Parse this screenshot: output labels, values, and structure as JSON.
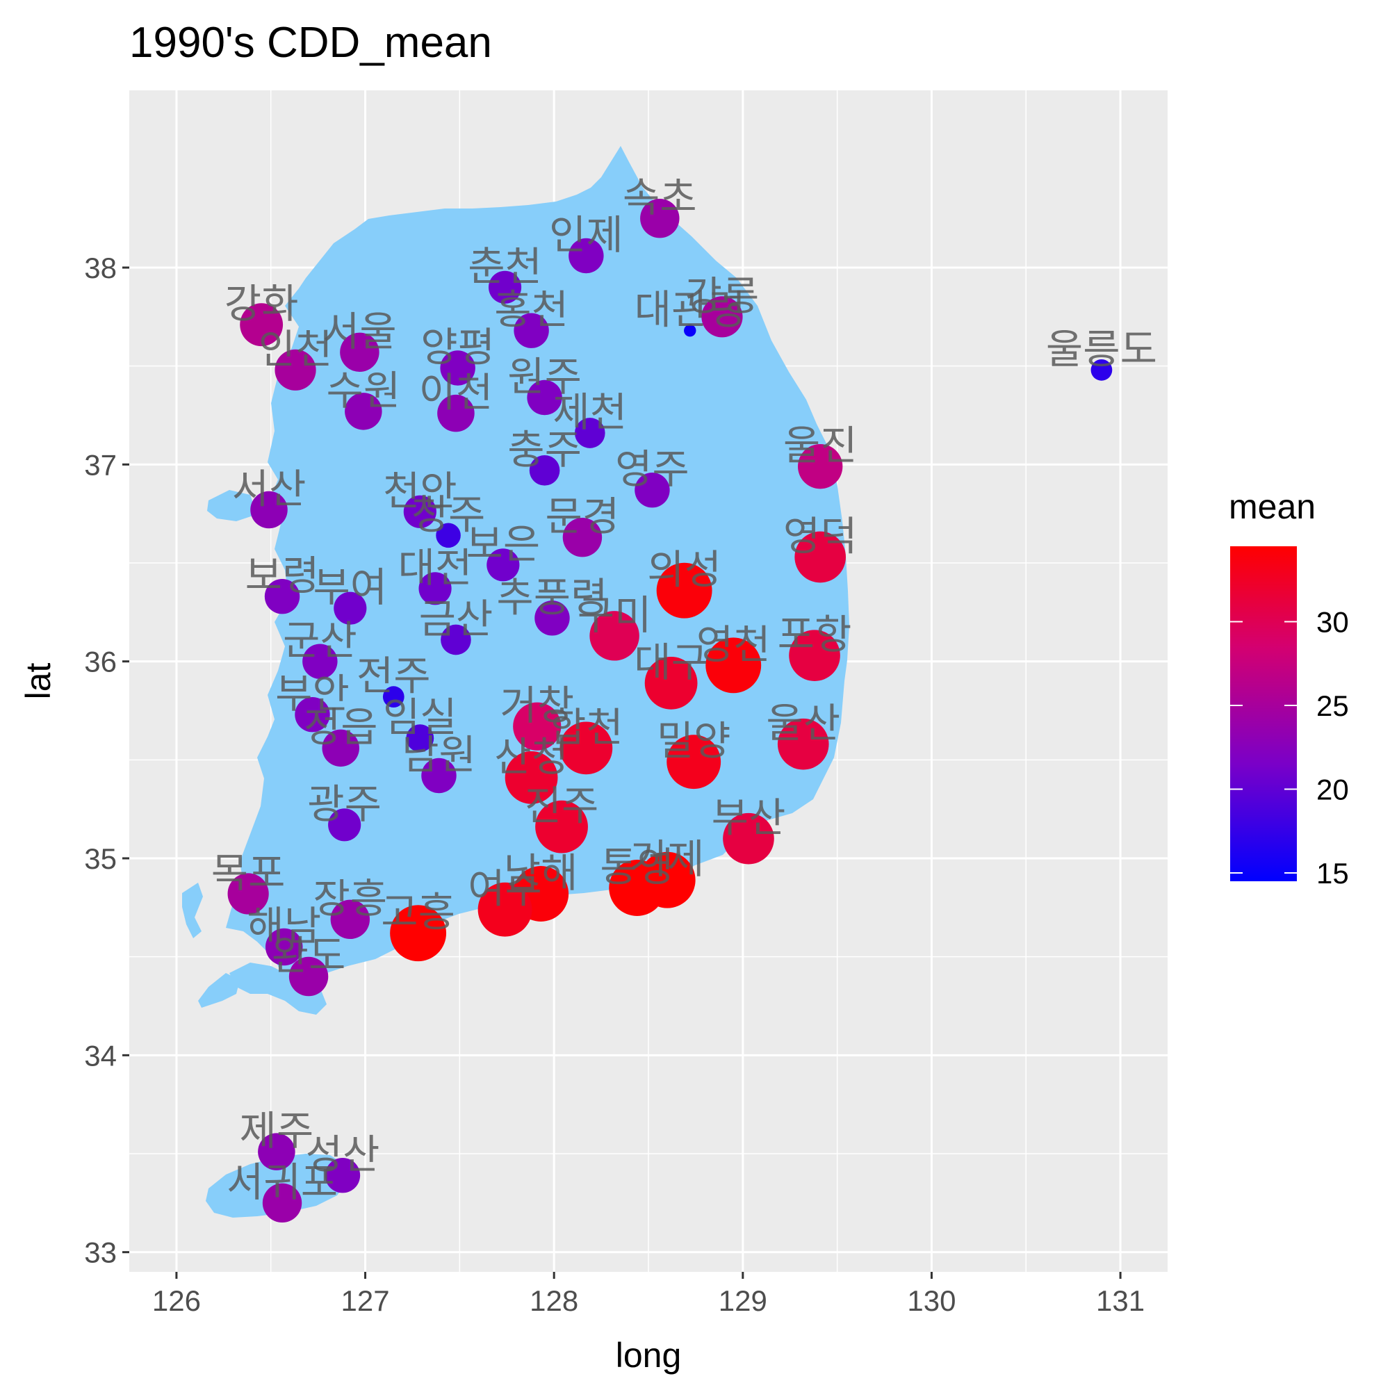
{
  "chart_data": {
    "type": "scatter",
    "title": "1990's CDD_mean",
    "xlabel": "long",
    "ylabel": "lat",
    "xlim": [
      125.75,
      131.25
    ],
    "ylim": [
      32.9,
      38.9
    ],
    "xticks": [
      126,
      127,
      128,
      129,
      130,
      131
    ],
    "yticks": [
      33,
      34,
      35,
      36,
      37,
      38
    ],
    "grid": true,
    "background_region": {
      "name": "South Korea land mass",
      "color": "#87CEFA"
    },
    "legend": {
      "title": "mean",
      "position": "right",
      "type": "colorbar",
      "range": [
        14.5,
        34.5
      ],
      "breaks": [
        15,
        20,
        25,
        30
      ],
      "low_color": "#0000FF",
      "high_color": "#FF0000"
    },
    "size_mapped_to": "mean",
    "points": [
      {
        "name": "속초",
        "long": 128.56,
        "lat": 38.25,
        "mean": 24
      },
      {
        "name": "인제",
        "long": 128.17,
        "lat": 38.06,
        "mean": 22
      },
      {
        "name": "춘천",
        "long": 127.74,
        "lat": 37.9,
        "mean": 21
      },
      {
        "name": "홍천",
        "long": 127.88,
        "lat": 37.68,
        "mean": 22
      },
      {
        "name": "대관령",
        "long": 128.72,
        "lat": 37.68,
        "mean": 15
      },
      {
        "name": "강릉",
        "long": 128.89,
        "lat": 37.75,
        "mean": 25
      },
      {
        "name": "강화",
        "long": 126.45,
        "lat": 37.71,
        "mean": 26
      },
      {
        "name": "서울",
        "long": 126.97,
        "lat": 37.57,
        "mean": 24
      },
      {
        "name": "양평",
        "long": 127.49,
        "lat": 37.49,
        "mean": 22
      },
      {
        "name": "인천",
        "long": 126.63,
        "lat": 37.48,
        "mean": 25
      },
      {
        "name": "원주",
        "long": 127.95,
        "lat": 37.34,
        "mean": 22
      },
      {
        "name": "수원",
        "long": 126.99,
        "lat": 37.27,
        "mean": 23
      },
      {
        "name": "이천",
        "long": 127.48,
        "lat": 37.26,
        "mean": 23
      },
      {
        "name": "제천",
        "long": 128.19,
        "lat": 37.16,
        "mean": 20
      },
      {
        "name": "울릉도",
        "long": 130.9,
        "lat": 37.48,
        "mean": 17
      },
      {
        "name": "충주",
        "long": 127.95,
        "lat": 36.97,
        "mean": 20
      },
      {
        "name": "영주",
        "long": 128.52,
        "lat": 36.87,
        "mean": 22
      },
      {
        "name": "울진",
        "long": 129.41,
        "lat": 36.99,
        "mean": 27
      },
      {
        "name": "서산",
        "long": 126.49,
        "lat": 36.77,
        "mean": 23
      },
      {
        "name": "천안",
        "long": 127.29,
        "lat": 36.76,
        "mean": 21
      },
      {
        "name": "청주",
        "long": 127.44,
        "lat": 36.64,
        "mean": 18
      },
      {
        "name": "문경",
        "long": 128.15,
        "lat": 36.63,
        "mean": 24
      },
      {
        "name": "영덕",
        "long": 129.41,
        "lat": 36.53,
        "mean": 31
      },
      {
        "name": "보은",
        "long": 127.73,
        "lat": 36.49,
        "mean": 21
      },
      {
        "name": "대전",
        "long": 127.37,
        "lat": 36.37,
        "mean": 21
      },
      {
        "name": "의성",
        "long": 128.69,
        "lat": 36.36,
        "mean": 34
      },
      {
        "name": "보령",
        "long": 126.56,
        "lat": 36.33,
        "mean": 22
      },
      {
        "name": "부여",
        "long": 126.92,
        "lat": 36.27,
        "mean": 21
      },
      {
        "name": "추풍령",
        "long": 127.99,
        "lat": 36.22,
        "mean": 22
      },
      {
        "name": "구미",
        "long": 128.32,
        "lat": 36.13,
        "mean": 30
      },
      {
        "name": "금산",
        "long": 127.48,
        "lat": 36.11,
        "mean": 20
      },
      {
        "name": "포항",
        "long": 129.38,
        "lat": 36.03,
        "mean": 31
      },
      {
        "name": "영천",
        "long": 128.95,
        "lat": 35.98,
        "mean": 34
      },
      {
        "name": "군산",
        "long": 126.76,
        "lat": 36.0,
        "mean": 22
      },
      {
        "name": "대구",
        "long": 128.62,
        "lat": 35.89,
        "mean": 32
      },
      {
        "name": "전주",
        "long": 127.15,
        "lat": 35.82,
        "mean": 17
      },
      {
        "name": "부안",
        "long": 126.72,
        "lat": 35.73,
        "mean": 22
      },
      {
        "name": "거창",
        "long": 127.91,
        "lat": 35.67,
        "mean": 29
      },
      {
        "name": "임실",
        "long": 127.29,
        "lat": 35.61,
        "mean": 19
      },
      {
        "name": "정읍",
        "long": 126.87,
        "lat": 35.56,
        "mean": 23
      },
      {
        "name": "합천",
        "long": 128.17,
        "lat": 35.56,
        "mean": 32
      },
      {
        "name": "울산",
        "long": 129.32,
        "lat": 35.58,
        "mean": 31
      },
      {
        "name": "밀양",
        "long": 128.74,
        "lat": 35.49,
        "mean": 33
      },
      {
        "name": "산청",
        "long": 127.88,
        "lat": 35.41,
        "mean": 32
      },
      {
        "name": "남원",
        "long": 127.39,
        "lat": 35.42,
        "mean": 22
      },
      {
        "name": "광주",
        "long": 126.89,
        "lat": 35.17,
        "mean": 21
      },
      {
        "name": "진주",
        "long": 128.04,
        "lat": 35.16,
        "mean": 32
      },
      {
        "name": "부산",
        "long": 129.03,
        "lat": 35.1,
        "mean": 31
      },
      {
        "name": "통영",
        "long": 128.44,
        "lat": 34.85,
        "mean": 35
      },
      {
        "name": "거제",
        "long": 128.6,
        "lat": 34.89,
        "mean": 35
      },
      {
        "name": "남해",
        "long": 127.93,
        "lat": 34.82,
        "mean": 34
      },
      {
        "name": "여수",
        "long": 127.74,
        "lat": 34.74,
        "mean": 33
      },
      {
        "name": "목포",
        "long": 126.38,
        "lat": 34.82,
        "mean": 25
      },
      {
        "name": "장흥",
        "long": 126.92,
        "lat": 34.69,
        "mean": 24
      },
      {
        "name": "고흥",
        "long": 127.28,
        "lat": 34.62,
        "mean": 35
      },
      {
        "name": "해남",
        "long": 126.57,
        "lat": 34.55,
        "mean": 23
      },
      {
        "name": "완도",
        "long": 126.7,
        "lat": 34.4,
        "mean": 24
      },
      {
        "name": "제주",
        "long": 126.53,
        "lat": 33.51,
        "mean": 23
      },
      {
        "name": "성산",
        "long": 126.88,
        "lat": 33.39,
        "mean": 22
      },
      {
        "name": "서귀포",
        "long": 126.56,
        "lat": 33.25,
        "mean": 24
      }
    ]
  }
}
